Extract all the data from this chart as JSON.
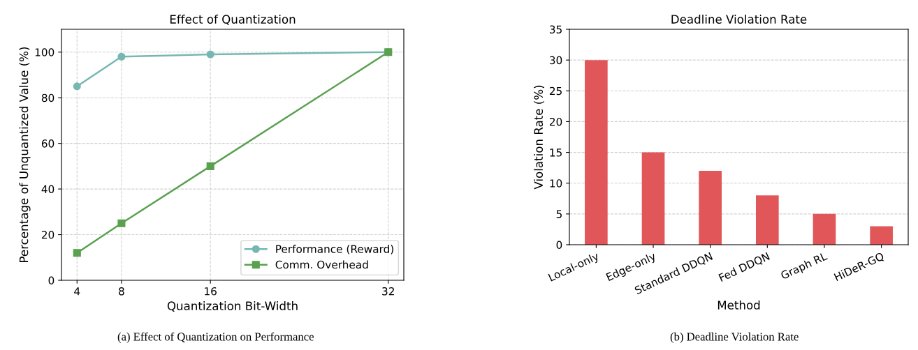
{
  "chart_data": [
    {
      "type": "line",
      "title": "Effect of Quantization",
      "xlabel": "Quantization Bit-Width",
      "ylabel": "Percentage of Unquantized Value (%)",
      "x": [
        4,
        8,
        16,
        32
      ],
      "series": [
        {
          "name": "Performance (Reward)",
          "color": "#76b7b2",
          "values": [
            85,
            98,
            99,
            100
          ],
          "marker": "circle"
        },
        {
          "name": "Comm. Overhead",
          "color": "#59a14f",
          "values": [
            12,
            25,
            50,
            100
          ],
          "marker": "square"
        }
      ],
      "xlim": [
        2.6,
        33.4
      ],
      "xticks": [
        4,
        8,
        16,
        32
      ],
      "ylim": [
        0,
        110
      ],
      "yticks": [
        0,
        20,
        40,
        60,
        80,
        100
      ],
      "grid": true,
      "legend": "bottom right",
      "line_style": "solid",
      "annotations": [
        "(a) Effect of Quantization on Performance"
      ]
    },
    {
      "type": "bar",
      "title": "Deadline Violation Rate",
      "xlabel": "Method",
      "ylabel": "Violation Rate (%)",
      "categories": [
        "Local-only",
        "Edge-only",
        "Standard DDQN",
        "Fed DDQN",
        "Graph RL",
        "HiDeR-GQ"
      ],
      "values": [
        30,
        15,
        12,
        8,
        5,
        3
      ],
      "color": "#e15759",
      "ylim": [
        0,
        35
      ],
      "yticks": [
        0,
        5,
        10,
        15,
        20,
        25,
        30,
        35
      ],
      "grid": "y",
      "annotations": [
        "(b) Deadline Violation Rate"
      ]
    }
  ]
}
